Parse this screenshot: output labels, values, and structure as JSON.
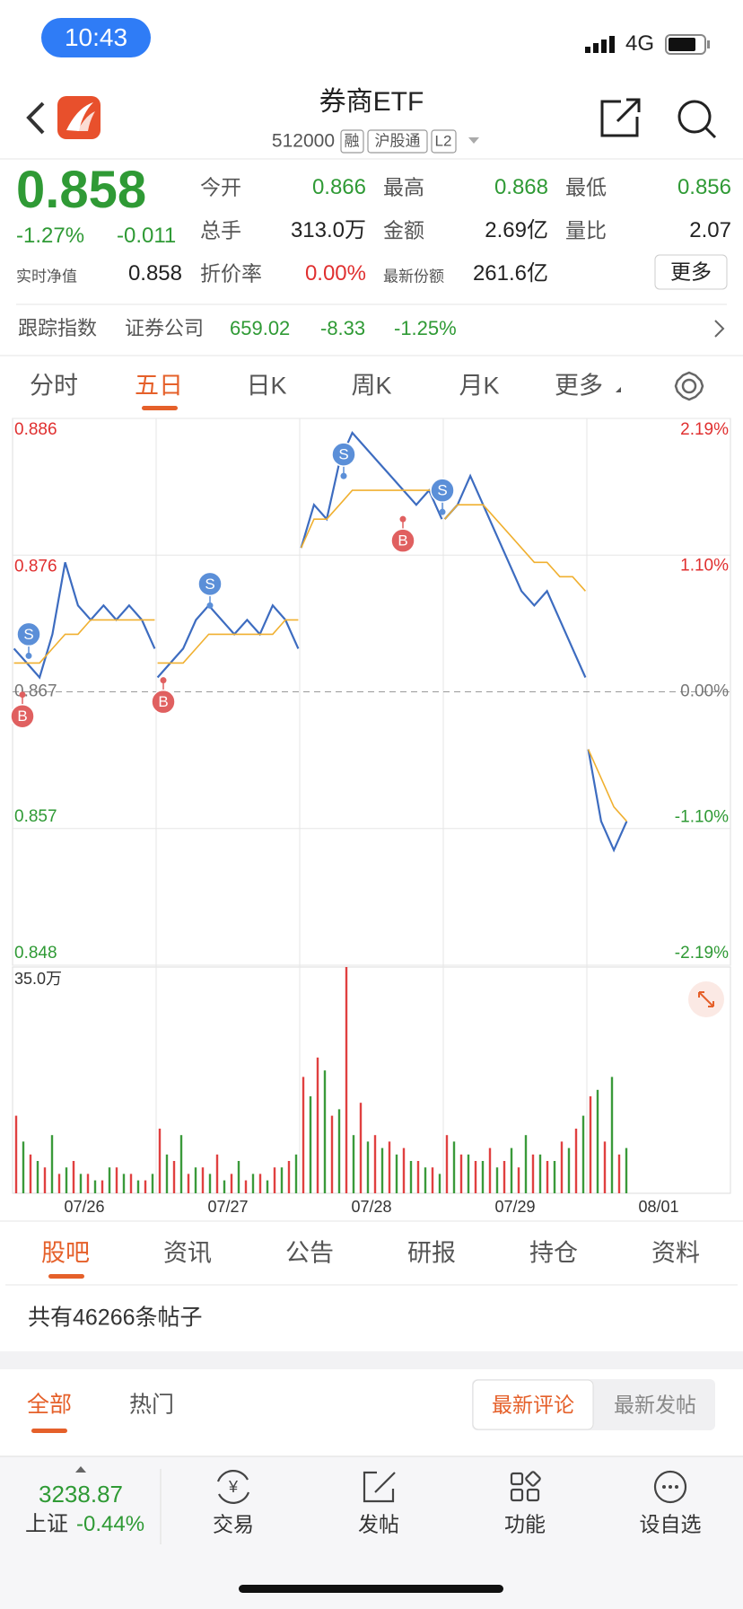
{
  "status_bar": {
    "time": "10:43",
    "network": "4G"
  },
  "header": {
    "title": "券商ETF",
    "code": "512000",
    "badges": [
      "融",
      "沪股通",
      "L2"
    ]
  },
  "quote": {
    "price": "0.858",
    "change_pct": "-1.27%",
    "change": "-0.011",
    "fields": [
      {
        "label": "今开",
        "value": "0.866"
      },
      {
        "label": "最高",
        "value": "0.868"
      },
      {
        "label": "最低",
        "value": "0.856"
      },
      {
        "label": "总手",
        "value": "313.0万"
      },
      {
        "label": "金额",
        "value": "2.69亿"
      },
      {
        "label": "量比",
        "value": "2.07"
      },
      {
        "label": "实时净值",
        "value": "0.858"
      },
      {
        "label": "折价率",
        "value": "0.00%"
      },
      {
        "label": "最新份额",
        "value": "261.6亿"
      }
    ],
    "more_button": "更多"
  },
  "tracking": {
    "label": "跟踪指数",
    "index": "证券公司",
    "value": "659.02",
    "change": "-8.33",
    "change_pct": "-1.25%"
  },
  "chart_tabs": [
    "分时",
    "五日",
    "日K",
    "周K",
    "月K",
    "更多"
  ],
  "chart_data": {
    "type": "line",
    "categories": [
      "07/26",
      "07/27",
      "07/28",
      "07/29",
      "08/01"
    ],
    "ylim": [
      0.848,
      0.886
    ],
    "yticks": [
      0.886,
      {
        "value": 0.8765,
        "label": "0.876"
      },
      0.867,
      {
        "value": 0.8575,
        "label": "0.857"
      },
      0.848
    ],
    "y2lim": [
      -2.19,
      2.19
    ],
    "y2ticks": [
      {
        "value": 2.19,
        "label": "2.19%"
      },
      {
        "value": 1.1,
        "label": "1.10%"
      },
      {
        "value": 0,
        "label": "0.00%"
      },
      {
        "value": -1.1,
        "label": "-1.10%"
      },
      {
        "value": -2.19,
        "label": "-2.19%"
      }
    ],
    "grid": true,
    "series": [
      {
        "color": "#3d6cc0",
        "values": [
          [
            0.87,
            0.869,
            0.868,
            0.871,
            0.876,
            0.873,
            0.872,
            0.873,
            0.872,
            0.873,
            0.872,
            0.87
          ],
          [
            0.868,
            0.869,
            0.87,
            0.872,
            0.873,
            0.872,
            0.871,
            0.872,
            0.871,
            0.873,
            0.872,
            0.87
          ],
          [
            0.877,
            0.88,
            0.879,
            0.883,
            0.885,
            0.884,
            0.883,
            0.882,
            0.881,
            0.88,
            0.881,
            0.879
          ],
          [
            0.879,
            0.88,
            0.882,
            0.88,
            0.878,
            0.876,
            0.874,
            0.873,
            0.874,
            0.872,
            0.87,
            0.868
          ],
          [
            0.863,
            0.858,
            0.856,
            0.858,
            null,
            null,
            null,
            null,
            null,
            null,
            null,
            null
          ]
        ]
      },
      {
        "color": "#f0b030",
        "values": [
          [
            0.869,
            0.869,
            0.869,
            0.87,
            0.871,
            0.871,
            0.872,
            0.872,
            0.872,
            0.872,
            0.872,
            0.872
          ],
          [
            0.869,
            0.869,
            0.869,
            0.87,
            0.871,
            0.871,
            0.871,
            0.871,
            0.871,
            0.871,
            0.872,
            0.872
          ],
          [
            0.877,
            0.879,
            0.879,
            0.88,
            0.881,
            0.881,
            0.881,
            0.881,
            0.881,
            0.881,
            0.881,
            0.881
          ],
          [
            0.879,
            0.88,
            0.88,
            0.88,
            0.879,
            0.878,
            0.877,
            0.876,
            0.876,
            0.875,
            0.875,
            0.874
          ],
          [
            0.863,
            0.861,
            0.859,
            0.858,
            null,
            null,
            null,
            null,
            null,
            null,
            null,
            null
          ]
        ]
      }
    ],
    "markers": [
      {
        "label": "S",
        "value": 0.8695,
        "color": "#5b8fd8"
      },
      {
        "label": "B",
        "value": 0.8668,
        "color": "#e06060"
      },
      {
        "label": "B",
        "value": 0.8678,
        "color": "#e06060"
      },
      {
        "label": "S",
        "value": 0.873,
        "color": "#5b8fd8"
      },
      {
        "label": "S",
        "value": 0.882,
        "color": "#5b8fd8"
      },
      {
        "label": "B",
        "value": 0.879,
        "color": "#e06060"
      },
      {
        "label": "S",
        "value": 0.8795,
        "color": "#5b8fd8"
      }
    ],
    "volume": {
      "ylim": [
        0,
        35
      ],
      "yticks": [
        {
          "value": 35,
          "label": "35.0万"
        }
      ],
      "series": [
        {
          "color": "#e04040",
          "values": [
            [
              12,
              6,
              4,
              3,
              5,
              3,
              2,
              4,
              3,
              2
            ],
            [
              10,
              5,
              3,
              4,
              6,
              3,
              2,
              3,
              4,
              5
            ],
            [
              18,
              21,
              12,
              35,
              14,
              9,
              8,
              7,
              5,
              4
            ],
            [
              9,
              6,
              5,
              7,
              5,
              4,
              6,
              5,
              8,
              10
            ],
            [
              15,
              8,
              6
            ]
          ]
        },
        {
          "color": "#3a9a3a",
          "values": [
            [
              8,
              5,
              9,
              4,
              3,
              2,
              4,
              3,
              2,
              3
            ],
            [
              6,
              9,
              4,
              3,
              2,
              5,
              3,
              2,
              4,
              6
            ],
            [
              15,
              19,
              13,
              9,
              8,
              7,
              6,
              5,
              4,
              3
            ],
            [
              8,
              6,
              5,
              4,
              7,
              9,
              6,
              5,
              7,
              12
            ],
            [
              16,
              18,
              7
            ]
          ]
        }
      ]
    }
  },
  "content_tabs": [
    "股吧",
    "资讯",
    "公告",
    "研报",
    "持仓",
    "资料"
  ],
  "post_count": "共有46266条帖子",
  "filters": [
    "全部",
    "热门"
  ],
  "sort": [
    "最新评论",
    "最新发帖"
  ],
  "bottom_bar": {
    "index_value": "3238.87",
    "index_name": "上证",
    "index_change": "-0.44%",
    "items": [
      "交易",
      "发帖",
      "功能",
      "设自选"
    ]
  }
}
